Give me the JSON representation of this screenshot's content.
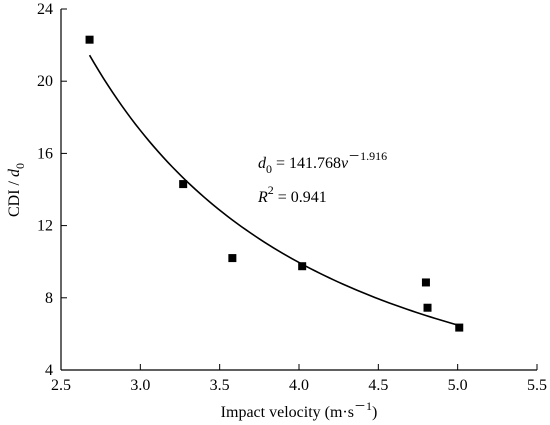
{
  "chart_data": {
    "type": "scatter",
    "xlabel_text": "Impact velocity (m·s",
    "xlabel_sup": "－1",
    "xlabel_close": ")",
    "ylabel_main": "CDI / ",
    "ylabel_var": "d",
    "ylabel_sub": "0",
    "xlim": [
      2.5,
      5.5
    ],
    "ylim": [
      4,
      24
    ],
    "x_ticks": [
      "2.5",
      "3.0",
      "3.5",
      "4.0",
      "4.5",
      "5.0",
      "5.5"
    ],
    "y_ticks": [
      "4",
      "8",
      "12",
      "16",
      "20",
      "24"
    ],
    "series": [
      {
        "points": [
          {
            "x": 2.68,
            "y": 22.3
          },
          {
            "x": 3.27,
            "y": 14.3
          },
          {
            "x": 3.58,
            "y": 10.2
          },
          {
            "x": 4.02,
            "y": 9.75
          },
          {
            "x": 4.8,
            "y": 8.85
          },
          {
            "x": 4.81,
            "y": 7.45
          },
          {
            "x": 5.01,
            "y": 6.35
          }
        ]
      }
    ],
    "fit": {
      "coefficient": 141.768,
      "exponent": -1.916,
      "x_range": [
        2.68,
        5.0
      ]
    },
    "annotations": {
      "eq_var": "d",
      "eq_sub": "0",
      "eq_mid": " = 141.768",
      "eq_v": "v",
      "eq_exp": "－1.916",
      "r_var": "R",
      "r_sup": "2",
      "r_rest": " = 0.941"
    }
  }
}
